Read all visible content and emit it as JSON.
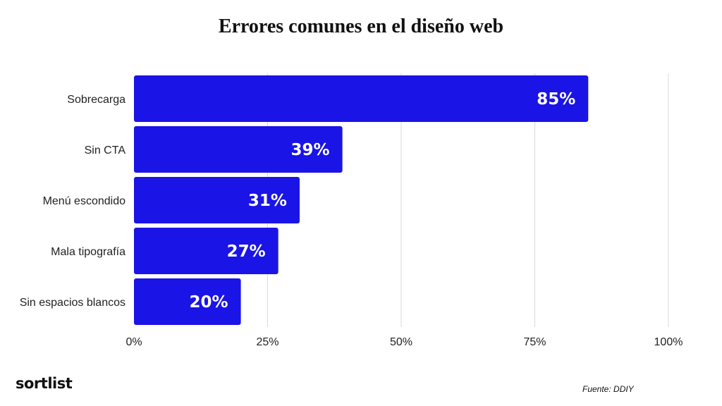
{
  "header": {
    "title": "Errores comunes en el diseño web"
  },
  "footer": {
    "brand": "sortlist",
    "source": "Fuente: DDIY"
  },
  "colors": {
    "bar": "#1a14e6",
    "grid": "#d9d9d9",
    "label_on_bar": "#ffffff",
    "text": "#222222"
  },
  "chart_data": {
    "type": "bar",
    "orientation": "horizontal",
    "title": "Errores comunes en el diseño web",
    "categories": [
      "Sobrecarga",
      "Sin CTA",
      "Menú escondido",
      "Mala tipografía",
      "Sin espacios blancos"
    ],
    "values": [
      85,
      39,
      31,
      27,
      20
    ],
    "data_labels": [
      "85%",
      "39%",
      "31%",
      "27%",
      "20%"
    ],
    "xlim": [
      0,
      100
    ],
    "x_ticks": [
      0,
      25,
      50,
      75,
      100
    ],
    "x_tick_labels": [
      "0%",
      "25%",
      "50%",
      "75%",
      "100%"
    ],
    "xlabel": "",
    "ylabel": "",
    "grid": true,
    "legend": false
  }
}
